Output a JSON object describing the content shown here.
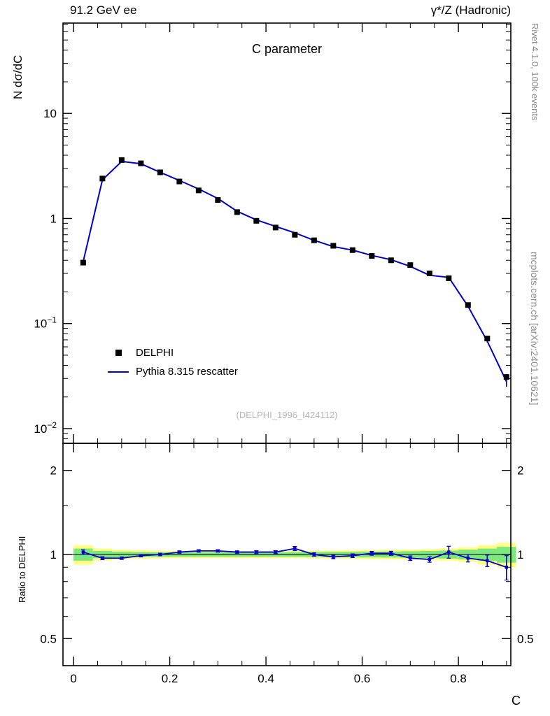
{
  "header": {
    "left": "91.2 GeV ee",
    "right": "γ*/Z (Hadronic)"
  },
  "sidebar_right": {
    "top": "Rivet 4.1.0, 100k events",
    "bottom": "mcplots.cern.ch [arXiv:2401.10621]"
  },
  "main_panel": {
    "title": "C parameter",
    "ylabel": "N  dσ/dC",
    "ref_label": "(DELPHI_1996_I424112)",
    "legend": [
      {
        "label": "DELPHI",
        "marker": "square",
        "color": "#000000"
      },
      {
        "label": "Pythia 8.315 rescatter",
        "marker": "line",
        "color": "#0000cd"
      }
    ]
  },
  "ratio_panel": {
    "ylabel": "Ratio to DELPHI"
  },
  "xlabel": "C",
  "colors": {
    "mc_line": "#0000cd",
    "data_marker": "#000000",
    "band_yellow": "#ffff80",
    "band_green": "#7de87d",
    "frame": "#000000",
    "watermark": "#8c8c8c",
    "ref_text": "#b4b4b4"
  },
  "chart_data": {
    "type": "line",
    "title": "C parameter",
    "xlabel": "C",
    "ylabel": "N dσ/dC",
    "x": [
      0.02,
      0.06,
      0.1,
      0.14,
      0.18,
      0.22,
      0.26,
      0.3,
      0.34,
      0.38,
      0.42,
      0.46,
      0.5,
      0.54,
      0.58,
      0.62,
      0.66,
      0.7,
      0.74,
      0.78,
      0.82,
      0.86,
      0.9
    ],
    "bin_halfwidth": 0.02,
    "series": [
      {
        "name": "DELPHI",
        "style": "squares",
        "values": [
          0.38,
          2.4,
          3.6,
          3.35,
          2.75,
          2.25,
          1.85,
          1.5,
          1.15,
          0.95,
          0.82,
          0.7,
          0.62,
          0.55,
          0.5,
          0.44,
          0.4,
          0.36,
          0.3,
          0.27,
          0.15,
          0.072,
          0.031
        ],
        "errors": [
          0.01,
          0.04,
          0.05,
          0.05,
          0.04,
          0.03,
          0.025,
          0.02,
          0.016,
          0.013,
          0.011,
          0.01,
          0.009,
          0.008,
          0.007,
          0.006,
          0.006,
          0.005,
          0.005,
          0.004,
          0.003,
          0.002,
          0.002
        ]
      },
      {
        "name": "Pythia 8.315 rescatter",
        "style": "line",
        "values": [
          0.388,
          2.33,
          3.49,
          3.32,
          2.75,
          2.3,
          1.91,
          1.55,
          1.17,
          0.97,
          0.84,
          0.73,
          0.62,
          0.54,
          0.5,
          0.445,
          0.405,
          0.35,
          0.288,
          0.275,
          0.146,
          0.068,
          0.028
        ],
        "errors": [
          0.004,
          0.01,
          0.012,
          0.012,
          0.01,
          0.009,
          0.008,
          0.007,
          0.006,
          0.006,
          0.005,
          0.005,
          0.004,
          0.004,
          0.004,
          0.003,
          0.003,
          0.003,
          0.003,
          0.003,
          0.002,
          0.002,
          0.003
        ]
      }
    ],
    "ratio": {
      "label": "Ratio to DELPHI",
      "values": [
        1.02,
        0.97,
        0.97,
        0.99,
        1.0,
        1.02,
        1.03,
        1.03,
        1.02,
        1.02,
        1.02,
        1.05,
        1.0,
        0.98,
        0.99,
        1.01,
        1.01,
        0.97,
        0.96,
        1.02,
        0.97,
        0.95,
        0.9
      ],
      "errors": [
        0.02,
        0.012,
        0.01,
        0.01,
        0.01,
        0.01,
        0.01,
        0.01,
        0.01,
        0.012,
        0.012,
        0.018,
        0.014,
        0.014,
        0.015,
        0.016,
        0.017,
        0.018,
        0.022,
        0.05,
        0.03,
        0.045,
        0.09
      ],
      "band_yellow": [
        0.08,
        0.05,
        0.04,
        0.035,
        0.032,
        0.03,
        0.03,
        0.03,
        0.03,
        0.03,
        0.03,
        0.03,
        0.032,
        0.034,
        0.036,
        0.038,
        0.04,
        0.042,
        0.045,
        0.05,
        0.06,
        0.08,
        0.1
      ],
      "band_green": [
        0.05,
        0.03,
        0.024,
        0.02,
        0.019,
        0.018,
        0.018,
        0.018,
        0.018,
        0.018,
        0.018,
        0.019,
        0.02,
        0.021,
        0.022,
        0.024,
        0.025,
        0.027,
        0.03,
        0.033,
        0.04,
        0.05,
        0.065
      ]
    },
    "axes": {
      "x": {
        "min": -0.022,
        "max": 0.909,
        "major": [
          0,
          0.2,
          0.4,
          0.6,
          0.8
        ],
        "labels": [
          "0",
          "0.2",
          "0.4",
          "0.6",
          "0.8"
        ],
        "minor_step": 0.05
      },
      "y_main": {
        "scale": "log",
        "log_top": 1.86,
        "log_bottom": -2.14,
        "ticks": [
          {
            "v": 10,
            "base": "10",
            "exp": ""
          },
          {
            "v": 1,
            "base": "1",
            "exp": ""
          },
          {
            "v": 0.1,
            "base": "10",
            "exp": "-1"
          },
          {
            "v": 0.01,
            "base": "10",
            "exp": "-2"
          }
        ]
      },
      "y_ratio": {
        "scale": "log",
        "min": 0.4,
        "max": 2.5,
        "ticks": [
          {
            "v": 2,
            "label": "2"
          },
          {
            "v": 1,
            "label": "1"
          },
          {
            "v": 0.5,
            "label": "0.5"
          }
        ],
        "minor": [
          0.6,
          0.7,
          0.8,
          0.9,
          1.5
        ]
      }
    },
    "legend_position": "center-left"
  }
}
